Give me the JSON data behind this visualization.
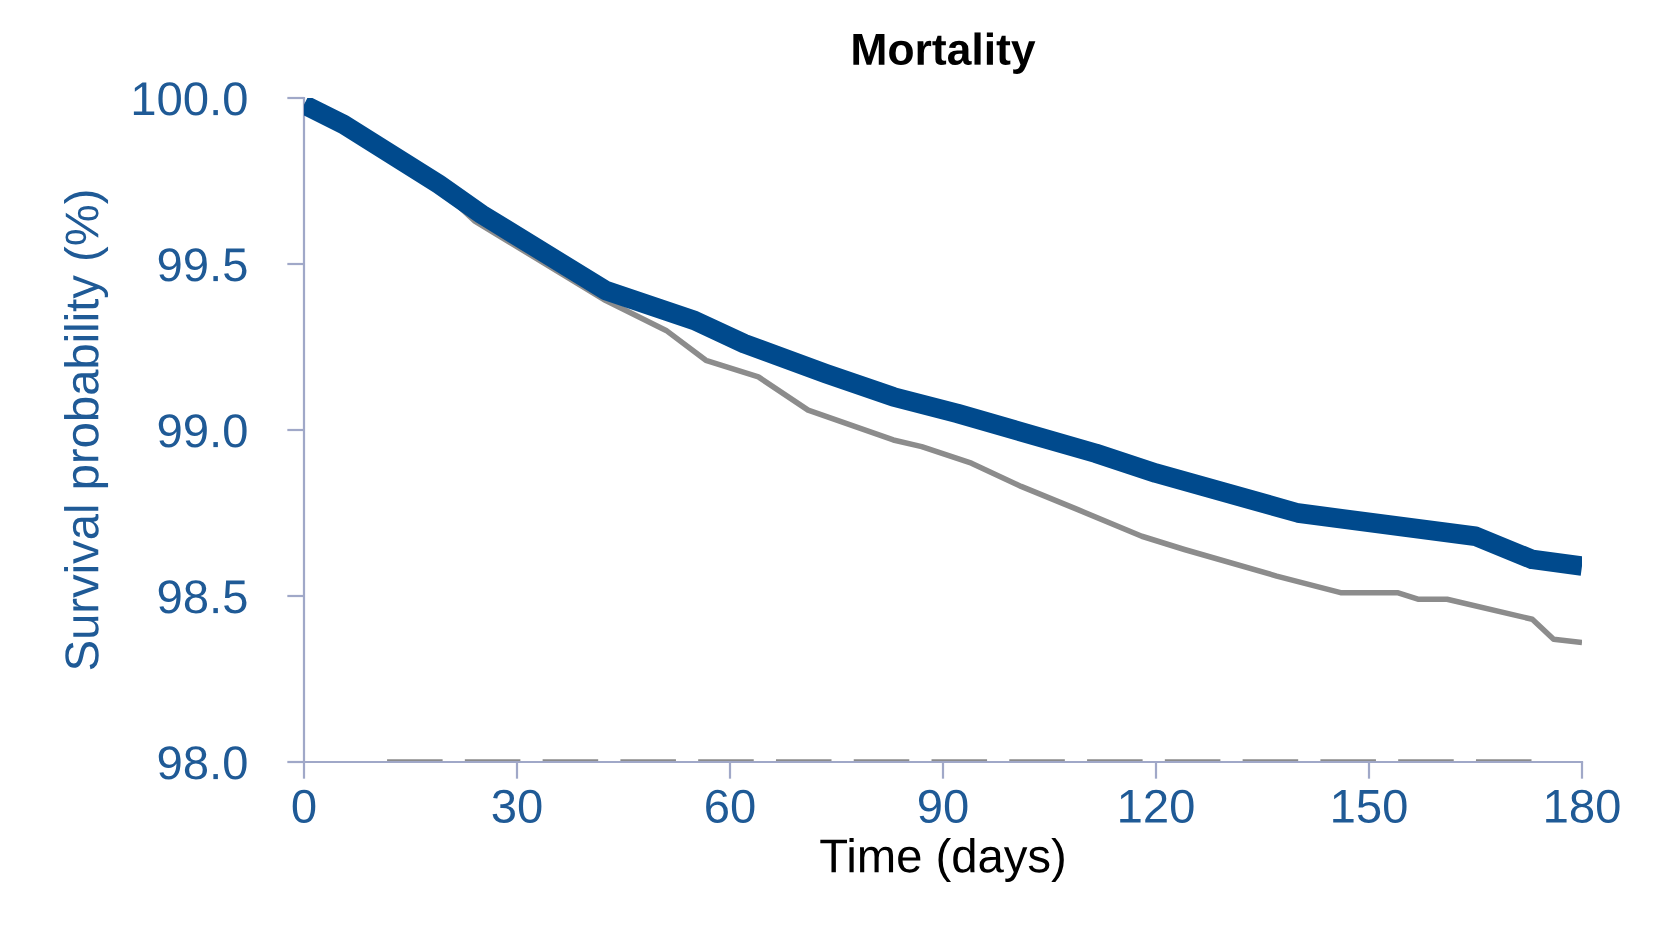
{
  "chart_data": {
    "type": "line",
    "title": "Mortality",
    "xlabel": "Time (days)",
    "ylabel": "Survival probability (%)",
    "series": [
      {
        "color": "#8c8c8c",
        "x": [
          0,
          6,
          20,
          24,
          42.5,
          51,
          56.6,
          64,
          71,
          83,
          87,
          94,
          101,
          109,
          118,
          124,
          137,
          146,
          154,
          157,
          161,
          173,
          176,
          180
        ],
        "values": [
          99.98,
          99.92,
          99.71,
          99.63,
          99.39,
          99.3,
          99.21,
          99.16,
          99.06,
          98.97,
          98.95,
          98.9,
          98.83,
          98.76,
          98.68,
          98.64,
          98.56,
          98.51,
          98.51,
          98.49,
          98.49,
          98.43,
          98.37,
          98.36
        ]
      },
      {
        "color": "#004a8d",
        "x": [
          0,
          5.6,
          19,
          25,
          42.5,
          55,
          62,
          73.5,
          83,
          92,
          111.5,
          120,
          140,
          165,
          173,
          180
        ],
        "values": [
          99.98,
          99.92,
          99.74,
          99.65,
          99.42,
          99.33,
          99.26,
          99.17,
          99.1,
          99.05,
          98.93,
          98.87,
          98.75,
          98.68,
          98.61,
          98.59
        ]
      }
    ],
    "xlim": [
      0,
      180
    ],
    "xticks": [
      0,
      30,
      60,
      90,
      120,
      150,
      180
    ],
    "ylim": [
      98.0,
      100.0
    ],
    "yticks": [
      {
        "value": 98.0,
        "label": "98.0"
      },
      {
        "value": 98.5,
        "label": "98.5"
      },
      {
        "value": 99.0,
        "label": "99.0"
      },
      {
        "value": 99.5,
        "label": "99.5"
      },
      {
        "value": 100.0,
        "label": "100.0"
      }
    ],
    "ref_lines": [
      {
        "axis": "y",
        "value": 98.0,
        "label": null,
        "color": "#8c8c8c",
        "line_style": "dashed"
      }
    ],
    "grid": false,
    "marker": "none",
    "line_style": "solid"
  }
}
